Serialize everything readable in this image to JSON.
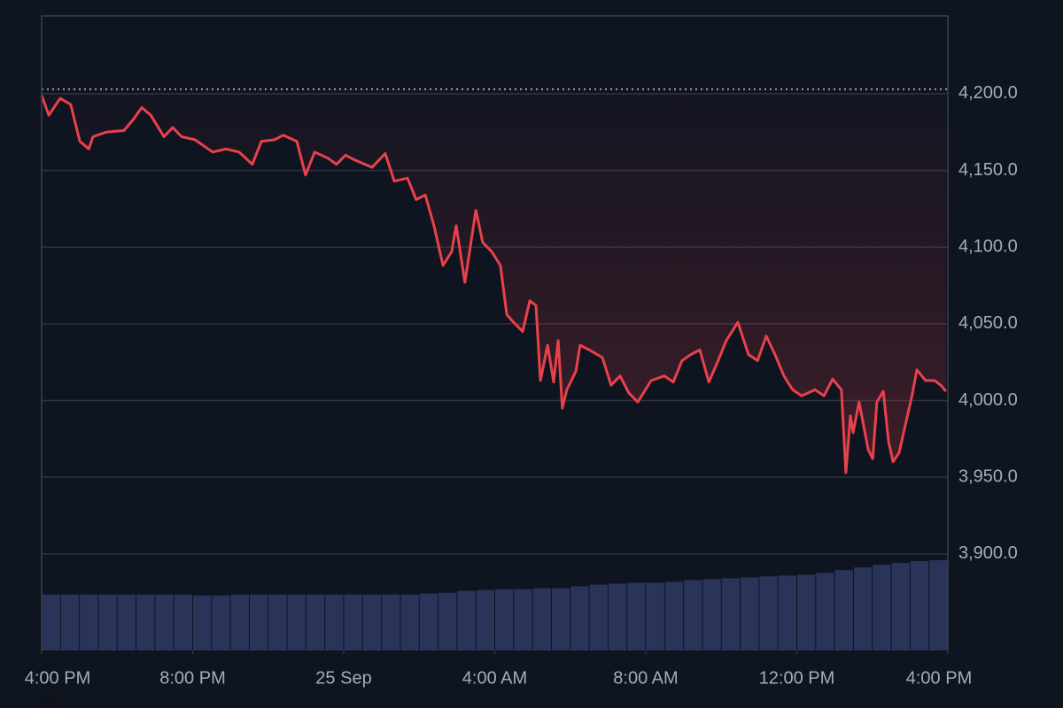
{
  "chart_data": {
    "type": "line",
    "xlim": [
      0,
      24
    ],
    "xticks": [
      {
        "value": 0,
        "label": "4:00 PM"
      },
      {
        "value": 4,
        "label": "8:00 PM"
      },
      {
        "value": 8,
        "label": "25 Sep"
      },
      {
        "value": 12,
        "label": "4:00 AM"
      },
      {
        "value": 16,
        "label": "8:00 AM"
      },
      {
        "value": 20,
        "label": "12:00 PM"
      },
      {
        "value": 24,
        "label": "4:00 PM"
      }
    ],
    "ylim": [
      3837,
      4250.75
    ],
    "yticks": [
      {
        "value": 3900,
        "label": "3,900.0"
      },
      {
        "value": 3950,
        "label": "3,950.0"
      },
      {
        "value": 4000,
        "label": "4,000.0"
      },
      {
        "value": 4050,
        "label": "4,050.0"
      },
      {
        "value": 4100,
        "label": "4,100.0"
      },
      {
        "value": 4150,
        "label": "4,150.0"
      },
      {
        "value": 4200,
        "label": "4,200.0"
      }
    ],
    "grid": true,
    "reference_line": 4203,
    "series": [
      {
        "color": "#e8414a",
        "x": [
          0,
          0.19,
          0.49,
          0.77,
          1.01,
          1.25,
          1.36,
          1.71,
          2.18,
          2.42,
          2.65,
          2.89,
          3.24,
          3.47,
          3.71,
          4.06,
          4.53,
          4.88,
          5.23,
          5.58,
          5.82,
          6.17,
          6.4,
          6.76,
          6.99,
          7.23,
          7.58,
          7.81,
          8.05,
          8.28,
          8.75,
          9.1,
          9.34,
          9.69,
          9.92,
          10.16,
          10.39,
          10.63,
          10.86,
          10.98,
          11.21,
          11.5,
          11.68,
          11.92,
          12.15,
          12.32,
          12.5,
          12.74,
          12.93,
          13.09,
          13.21,
          13.4,
          13.56,
          13.68,
          13.79,
          13.91,
          14.15,
          14.26,
          14.5,
          14.85,
          15.08,
          15.32,
          15.55,
          15.79,
          16.14,
          16.49,
          16.73,
          16.96,
          17.2,
          17.43,
          17.67,
          17.9,
          18.13,
          18.44,
          18.72,
          18.96,
          19.19,
          19.42,
          19.66,
          19.89,
          20.13,
          20.48,
          20.72,
          20.95,
          21.18,
          21.3,
          21.42,
          21.49,
          21.65,
          21.89,
          22.01,
          22.12,
          22.29,
          22.43,
          22.55,
          22.71,
          22.83,
          23.06,
          23.18,
          23.41,
          23.65,
          23.81,
          23.95
        ],
        "values": [
          4199,
          4186,
          4197,
          4193,
          4169,
          4164,
          4172,
          4175,
          4176,
          4183,
          4191,
          4186,
          4172,
          4178,
          4172,
          4170,
          4162,
          4164,
          4162,
          4154,
          4169,
          4170,
          4173,
          4169,
          4147,
          4162,
          4158,
          4154,
          4160,
          4157,
          4152,
          4161,
          4143,
          4145,
          4131,
          4134,
          4114,
          4088,
          4097,
          4114,
          4077,
          4124,
          4103,
          4097,
          4088,
          4056,
          4051,
          4045,
          4065,
          4062,
          4013,
          4036,
          4012,
          4039,
          3995,
          4007,
          4019,
          4036,
          4033,
          4028,
          4010,
          4016,
          4005,
          3999,
          4013,
          4016,
          4012,
          4026,
          4030,
          4033,
          4012,
          4025,
          4039,
          4051,
          4030,
          4026,
          4042,
          4030,
          4016,
          4007,
          4003,
          4007,
          4003,
          4014,
          4007,
          3953,
          3990,
          3979,
          3999,
          3968,
          3962,
          3999,
          4006,
          3973,
          3960,
          3966,
          3979,
          4004,
          4020,
          4013,
          4013,
          4010,
          4006
        ]
      }
    ],
    "volume": {
      "color": "#2a3358",
      "values": [
        62,
        62,
        62,
        62,
        62,
        62,
        62,
        62,
        61,
        61,
        62,
        62,
        62,
        62,
        62,
        62,
        62,
        62,
        62,
        62,
        63,
        64,
        66,
        67,
        68,
        68,
        69,
        69,
        71,
        73,
        74,
        75,
        75,
        76,
        78,
        79,
        80,
        81,
        82,
        83,
        84,
        86,
        89,
        92,
        95,
        97,
        99,
        100
      ]
    },
    "footnote": "85"
  }
}
